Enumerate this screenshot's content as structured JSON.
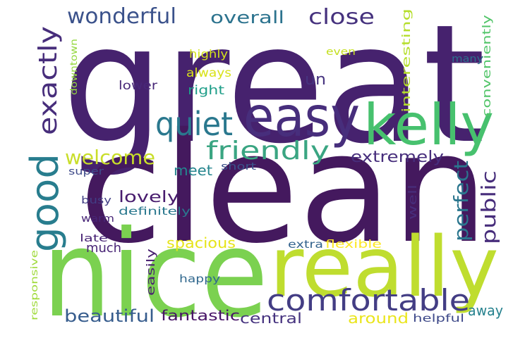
{
  "word_cloud": {
    "words": [
      {
        "text": "great",
        "color": "#46226e"
      },
      {
        "text": "clean",
        "color": "#44195e"
      },
      {
        "text": "nice",
        "color": "#7bd150"
      },
      {
        "text": "really",
        "color": "#bfdd2f"
      },
      {
        "text": "kelly",
        "color": "#47c16e"
      },
      {
        "text": "easy",
        "color": "#472e7c"
      },
      {
        "text": "quiet",
        "color": "#2a788e"
      },
      {
        "text": "comfortable",
        "color": "#433d84"
      },
      {
        "text": "friendly",
        "color": "#3aa582"
      },
      {
        "text": "good",
        "color": "#287d8e"
      },
      {
        "text": "exactly",
        "color": "#472d7b"
      },
      {
        "text": "wonderful",
        "color": "#3b528b"
      },
      {
        "text": "close",
        "color": "#46327e"
      },
      {
        "text": "welcome",
        "color": "#c9de2a"
      },
      {
        "text": "public",
        "color": "#472d7b"
      },
      {
        "text": "perfect",
        "color": "#2b768e"
      },
      {
        "text": "overall",
        "color": "#2c738e"
      },
      {
        "text": "extremely",
        "color": "#472e7c"
      },
      {
        "text": "lovely",
        "color": "#481c6e"
      },
      {
        "text": "beautiful",
        "color": "#365c8d"
      },
      {
        "text": "un",
        "color": "#46337f"
      },
      {
        "text": "away",
        "color": "#26828e"
      },
      {
        "text": "around",
        "color": "#eae51a"
      },
      {
        "text": "central",
        "color": "#46337f"
      },
      {
        "text": "fantastic",
        "color": "#481467"
      },
      {
        "text": "spacious",
        "color": "#e6e419"
      },
      {
        "text": "meet",
        "color": "#25858e"
      },
      {
        "text": "much",
        "color": "#482475"
      },
      {
        "text": "right",
        "color": "#1f9e89"
      },
      {
        "text": "always",
        "color": "#d8e219"
      },
      {
        "text": "lower",
        "color": "#482878"
      },
      {
        "text": "highly",
        "color": "#d2e21b"
      },
      {
        "text": "interesting",
        "color": "#b5de2b"
      },
      {
        "text": "conveniently",
        "color": "#52c569"
      },
      {
        "text": "well",
        "color": "#472d7b"
      },
      {
        "text": "easily",
        "color": "#482071"
      },
      {
        "text": "flexible",
        "color": "#fde725"
      },
      {
        "text": "extra",
        "color": "#33638d"
      },
      {
        "text": "helpful",
        "color": "#3e4989"
      },
      {
        "text": "happy",
        "color": "#31688e"
      },
      {
        "text": "definitely",
        "color": "#2a788e"
      },
      {
        "text": "short",
        "color": "#3b528b"
      },
      {
        "text": "super",
        "color": "#3e4a89"
      },
      {
        "text": "busy",
        "color": "#423f85"
      },
      {
        "text": "warm",
        "color": "#482677"
      },
      {
        "text": "late",
        "color": "#482475"
      },
      {
        "text": "many",
        "color": "#2d708e"
      },
      {
        "text": "even",
        "color": "#c5e021"
      },
      {
        "text": "downtown",
        "color": "#95d840"
      },
      {
        "text": "responsive",
        "color": "#9fda3a"
      }
    ]
  }
}
